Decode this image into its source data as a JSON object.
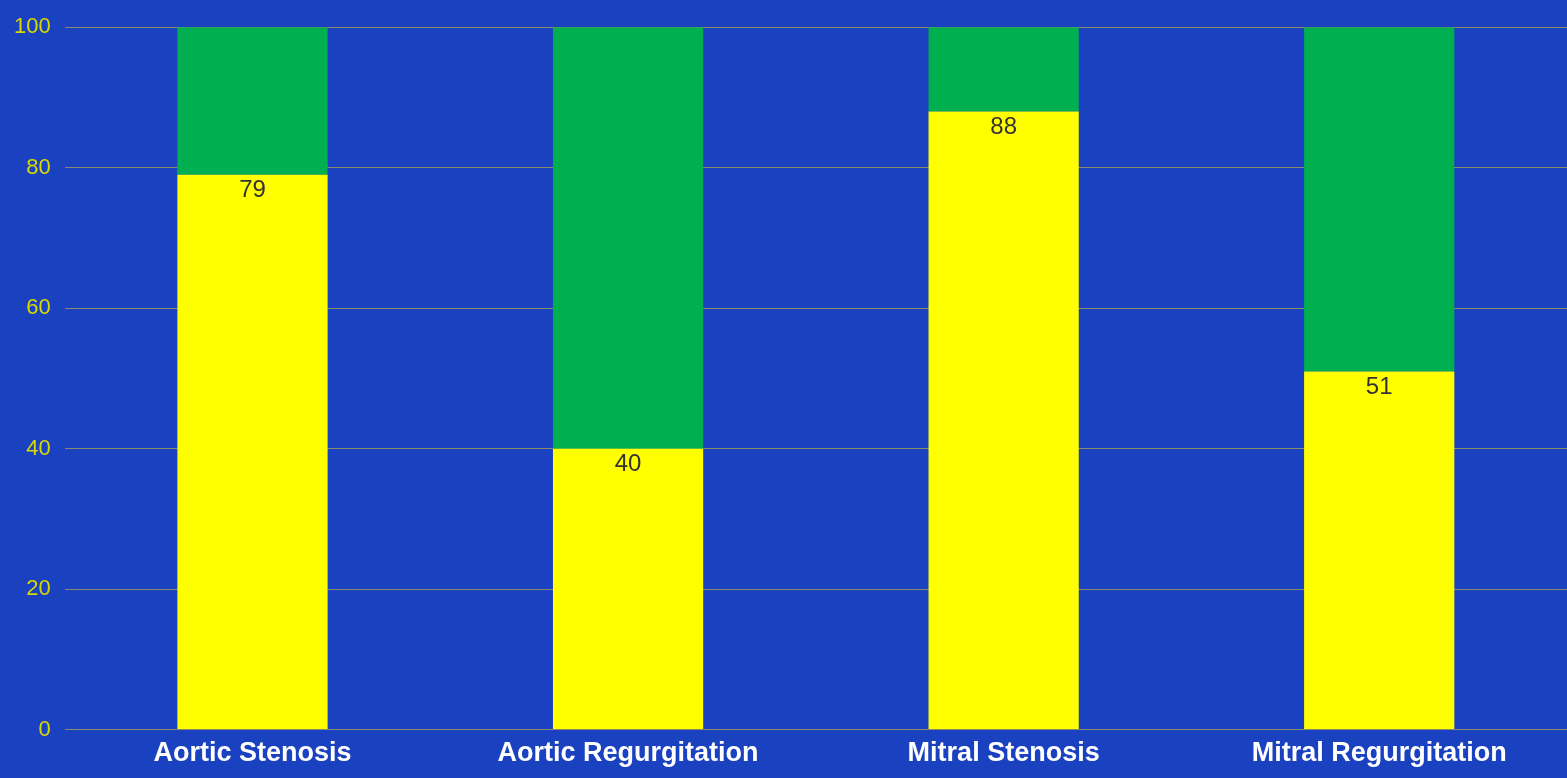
{
  "chart_data": {
    "type": "bar",
    "stacked": true,
    "categories": [
      "Aortic Stenosis",
      "Aortic Regurgitation",
      "Mitral Stenosis",
      "Mitral Regurgitation"
    ],
    "series": [
      {
        "color": "#ffff00",
        "values": [
          79,
          40,
          88,
          51
        ],
        "value_labels": [
          "79",
          "40",
          "88",
          "51"
        ]
      },
      {
        "color": "#00b050",
        "values": [
          21,
          60,
          12,
          49
        ]
      }
    ],
    "ylim": [
      0,
      100
    ],
    "yticks": [
      0,
      20,
      40,
      60,
      80,
      100
    ],
    "grid": "y",
    "legend": false
  }
}
